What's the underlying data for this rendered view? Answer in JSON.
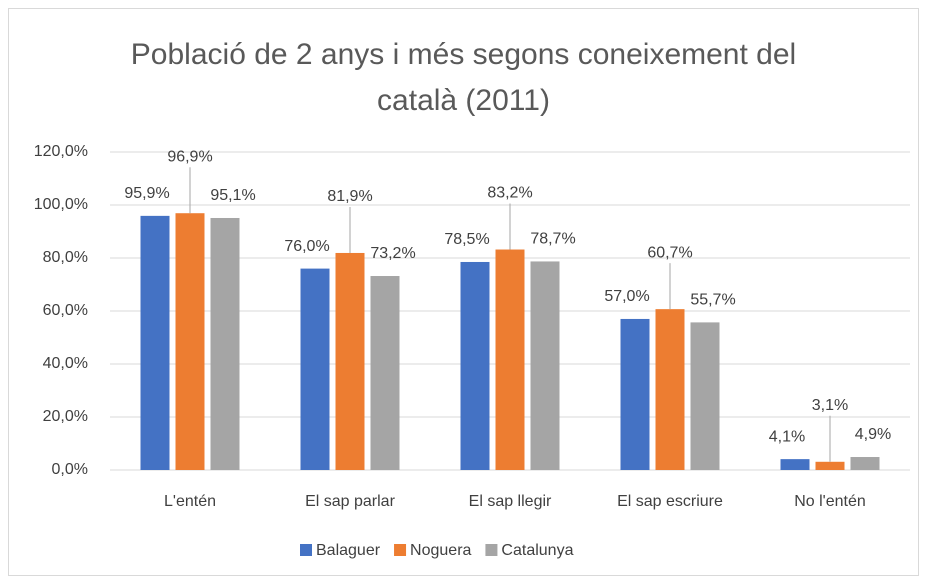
{
  "chart_data": {
    "type": "bar",
    "title": "Població de 2 anys i més segons coneixement del català (2011)",
    "categories": [
      "L'entén",
      "El sap parlar",
      "El sap llegir",
      "El sap escriure",
      "No l'entén"
    ],
    "series": [
      {
        "name": "Balaguer",
        "color": "#4472c4",
        "values": [
          95.9,
          76.0,
          78.5,
          57.0,
          4.1
        ],
        "value_labels": [
          "95,9%",
          "76,0%",
          "78,5%",
          "57,0%",
          "4,1%"
        ]
      },
      {
        "name": "Noguera",
        "color": "#ed7d31",
        "values": [
          96.9,
          81.9,
          83.2,
          60.7,
          3.1
        ],
        "value_labels": [
          "96,9%",
          "81,9%",
          "83,2%",
          "60,7%",
          "3,1%"
        ]
      },
      {
        "name": "Catalunya",
        "color": "#a5a5a5",
        "values": [
          95.1,
          73.2,
          78.7,
          55.7,
          4.9
        ],
        "value_labels": [
          "95,1%",
          "73,2%",
          "78,7%",
          "55,7%",
          "4,9%"
        ]
      }
    ],
    "ylim": [
      0,
      120
    ],
    "yticks": [
      {
        "value": 0,
        "label": "0,0%"
      },
      {
        "value": 20,
        "label": "20,0%"
      },
      {
        "value": 40,
        "label": "40,0%"
      },
      {
        "value": 60,
        "label": "60,0%"
      },
      {
        "value": 80,
        "label": "80,0%"
      },
      {
        "value": 100,
        "label": "100,0%"
      },
      {
        "value": 120,
        "label": "120,0%"
      }
    ],
    "grid": true,
    "legend": "bottom"
  }
}
